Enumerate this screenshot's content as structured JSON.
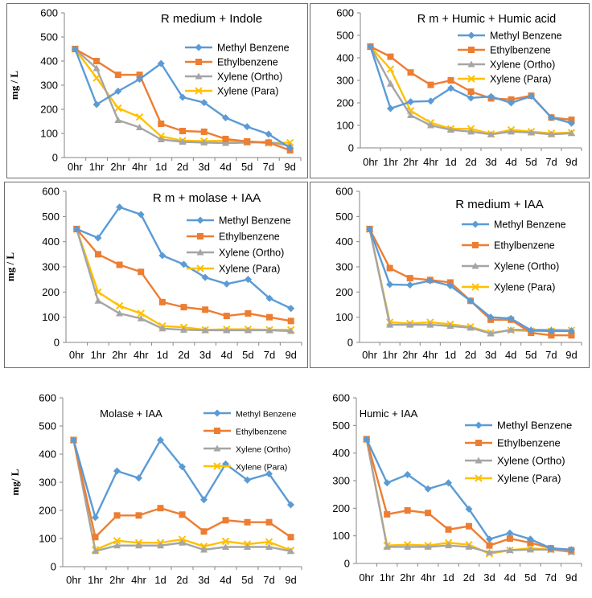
{
  "styles": {
    "series_colors": [
      "#5b9bd5",
      "#ed7d31",
      "#a5a5a5",
      "#ffc000"
    ],
    "marker_shapes": [
      "diamond",
      "square",
      "triangle",
      "cross"
    ]
  },
  "chart_data": [
    {
      "type": "line",
      "title": "R medium  + Indole",
      "xlabel": "",
      "ylabel": "mg / L",
      "ylim": [
        0,
        600
      ],
      "yticks": [
        0,
        100,
        200,
        300,
        400,
        500,
        600
      ],
      "categories": [
        "0hr",
        "1hr",
        "2hr",
        "4hr",
        "1d",
        "2d",
        "3d",
        "4d",
        "5d",
        "7d",
        "9d"
      ],
      "legend_position": "right",
      "series": [
        {
          "name": "Methyl Benzene",
          "values": [
            450,
            220,
            275,
            325,
            390,
            250,
            228,
            165,
            128,
            97,
            40
          ]
        },
        {
          "name": "Ethylbenzene",
          "values": [
            450,
            400,
            343,
            343,
            140,
            110,
            107,
            77,
            67,
            62,
            30
          ]
        },
        {
          "name": "Xylene (Ortho)",
          "values": [
            450,
            370,
            155,
            125,
            75,
            65,
            62,
            60,
            62,
            65,
            48
          ]
        },
        {
          "name": "Xylene (Para)",
          "values": [
            450,
            330,
            205,
            168,
            88,
            70,
            68,
            70,
            65,
            60,
            62
          ]
        }
      ]
    },
    {
      "type": "line",
      "title": "R m + Humic + Humic acid",
      "xlabel": "",
      "ylabel": "",
      "ylim": [
        0,
        600
      ],
      "yticks": [
        0,
        100,
        200,
        300,
        400,
        500,
        600
      ],
      "categories": [
        "0hr",
        "1hr",
        "2hr",
        "4hr",
        "1d",
        "2d",
        "3d",
        "4d",
        "5d",
        "7d",
        "9d"
      ],
      "legend_position": "top-right",
      "series": [
        {
          "name": "Methyl Benzene",
          "values": [
            450,
            175,
            205,
            208,
            265,
            222,
            228,
            200,
            230,
            135,
            110
          ]
        },
        {
          "name": "Ethylbenzene",
          "values": [
            450,
            405,
            335,
            280,
            300,
            250,
            220,
            215,
            232,
            135,
            125
          ]
        },
        {
          "name": "Xylene (Ortho)",
          "values": [
            450,
            285,
            145,
            100,
            80,
            72,
            60,
            72,
            68,
            60,
            65
          ]
        },
        {
          "name": "Xylene (Para)",
          "values": [
            450,
            350,
            165,
            112,
            85,
            85,
            62,
            80,
            72,
            65,
            68
          ]
        }
      ]
    },
    {
      "type": "line",
      "title": "R m + molase + IAA",
      "xlabel": "",
      "ylabel": "mg / L",
      "ylim": [
        0,
        600
      ],
      "yticks": [
        0,
        100,
        200,
        300,
        400,
        500,
        600
      ],
      "categories": [
        "0hr",
        "1hr",
        "2hr",
        "4hr",
        "1d",
        "2d",
        "3d",
        "4d",
        "5d",
        "7d",
        "9d"
      ],
      "legend_position": "right",
      "series": [
        {
          "name": "Methyl Benzene",
          "values": [
            450,
            415,
            537,
            508,
            345,
            310,
            258,
            232,
            250,
            175,
            135
          ]
        },
        {
          "name": "Ethylbenzene",
          "values": [
            450,
            350,
            308,
            280,
            160,
            140,
            130,
            105,
            115,
            100,
            85
          ]
        },
        {
          "name": "Xylene (Ortho)",
          "values": [
            450,
            165,
            115,
            95,
            55,
            50,
            48,
            48,
            48,
            48,
            45
          ]
        },
        {
          "name": "Xylene (Para)",
          "values": [
            450,
            200,
            145,
            115,
            65,
            60,
            50,
            52,
            52,
            50,
            50
          ]
        }
      ]
    },
    {
      "type": "line",
      "title": "R medium + IAA",
      "xlabel": "",
      "ylabel": "",
      "ylim": [
        0,
        600
      ],
      "yticks": [
        0,
        100,
        200,
        300,
        400,
        500,
        600
      ],
      "categories": [
        "0hr",
        "1hr",
        "2hr",
        "4hr",
        "1d",
        "2d",
        "3d",
        "4d",
        "5d",
        "7d",
        "9d"
      ],
      "legend_position": "right",
      "series": [
        {
          "name": "Methyl Benzene",
          "values": [
            450,
            230,
            228,
            245,
            225,
            165,
            100,
            95,
            48,
            45,
            45
          ]
        },
        {
          "name": "Ethylbenzene",
          "values": [
            450,
            295,
            255,
            248,
            238,
            165,
            90,
            90,
            38,
            28,
            28
          ]
        },
        {
          "name": "Xylene (Ortho)",
          "values": [
            450,
            70,
            70,
            70,
            65,
            58,
            35,
            50,
            50,
            50,
            48
          ]
        },
        {
          "name": "Xylene (Para)",
          "values": [
            450,
            80,
            75,
            80,
            72,
            62,
            38,
            48,
            45,
            45,
            48
          ]
        }
      ]
    },
    {
      "type": "line",
      "title": "Molase + IAA",
      "xlabel": "",
      "ylabel": "mg/ L",
      "ylim": [
        0,
        600
      ],
      "yticks": [
        0,
        100,
        200,
        300,
        400,
        500,
        600
      ],
      "categories": [
        "0hr",
        "1hr",
        "2hr",
        "4hr",
        "1d",
        "2d",
        "3d",
        "4d",
        "5d",
        "7d",
        "9d"
      ],
      "legend_position": "top-right",
      "series": [
        {
          "name": "Methyl Benzene",
          "values": [
            450,
            175,
            340,
            315,
            450,
            355,
            238,
            365,
            308,
            330,
            220
          ]
        },
        {
          "name": "Ethylbenzene",
          "values": [
            450,
            105,
            182,
            182,
            208,
            185,
            125,
            165,
            158,
            158,
            105
          ]
        },
        {
          "name": "Xylene (Ortho)",
          "values": [
            450,
            55,
            75,
            75,
            75,
            85,
            60,
            70,
            70,
            70,
            55
          ]
        },
        {
          "name": "Xylene (Para)",
          "values": [
            450,
            60,
            92,
            85,
            85,
            97,
            72,
            90,
            80,
            88,
            58
          ]
        }
      ]
    },
    {
      "type": "line",
      "title": "Humic + IAA",
      "xlabel": "",
      "ylabel": "",
      "ylim": [
        0,
        600
      ],
      "yticks": [
        0,
        100,
        200,
        300,
        400,
        500,
        600
      ],
      "categories": [
        "0hr",
        "1hr",
        "2hr",
        "4hr",
        "1d",
        "2d",
        "3d",
        "4d",
        "5d",
        "7d",
        "9d"
      ],
      "legend_position": "right",
      "series": [
        {
          "name": "Methyl Benzene",
          "values": [
            450,
            292,
            322,
            270,
            292,
            197,
            88,
            110,
            88,
            55,
            50
          ]
        },
        {
          "name": "Ethylbenzene",
          "values": [
            450,
            178,
            192,
            183,
            123,
            135,
            65,
            90,
            75,
            55,
            48
          ]
        },
        {
          "name": "Xylene (Ortho)",
          "values": [
            450,
            60,
            60,
            60,
            65,
            60,
            40,
            48,
            50,
            50,
            42
          ]
        },
        {
          "name": "Xylene (Para)",
          "values": [
            450,
            65,
            68,
            65,
            75,
            68,
            35,
            48,
            55,
            50,
            42
          ]
        }
      ]
    }
  ]
}
